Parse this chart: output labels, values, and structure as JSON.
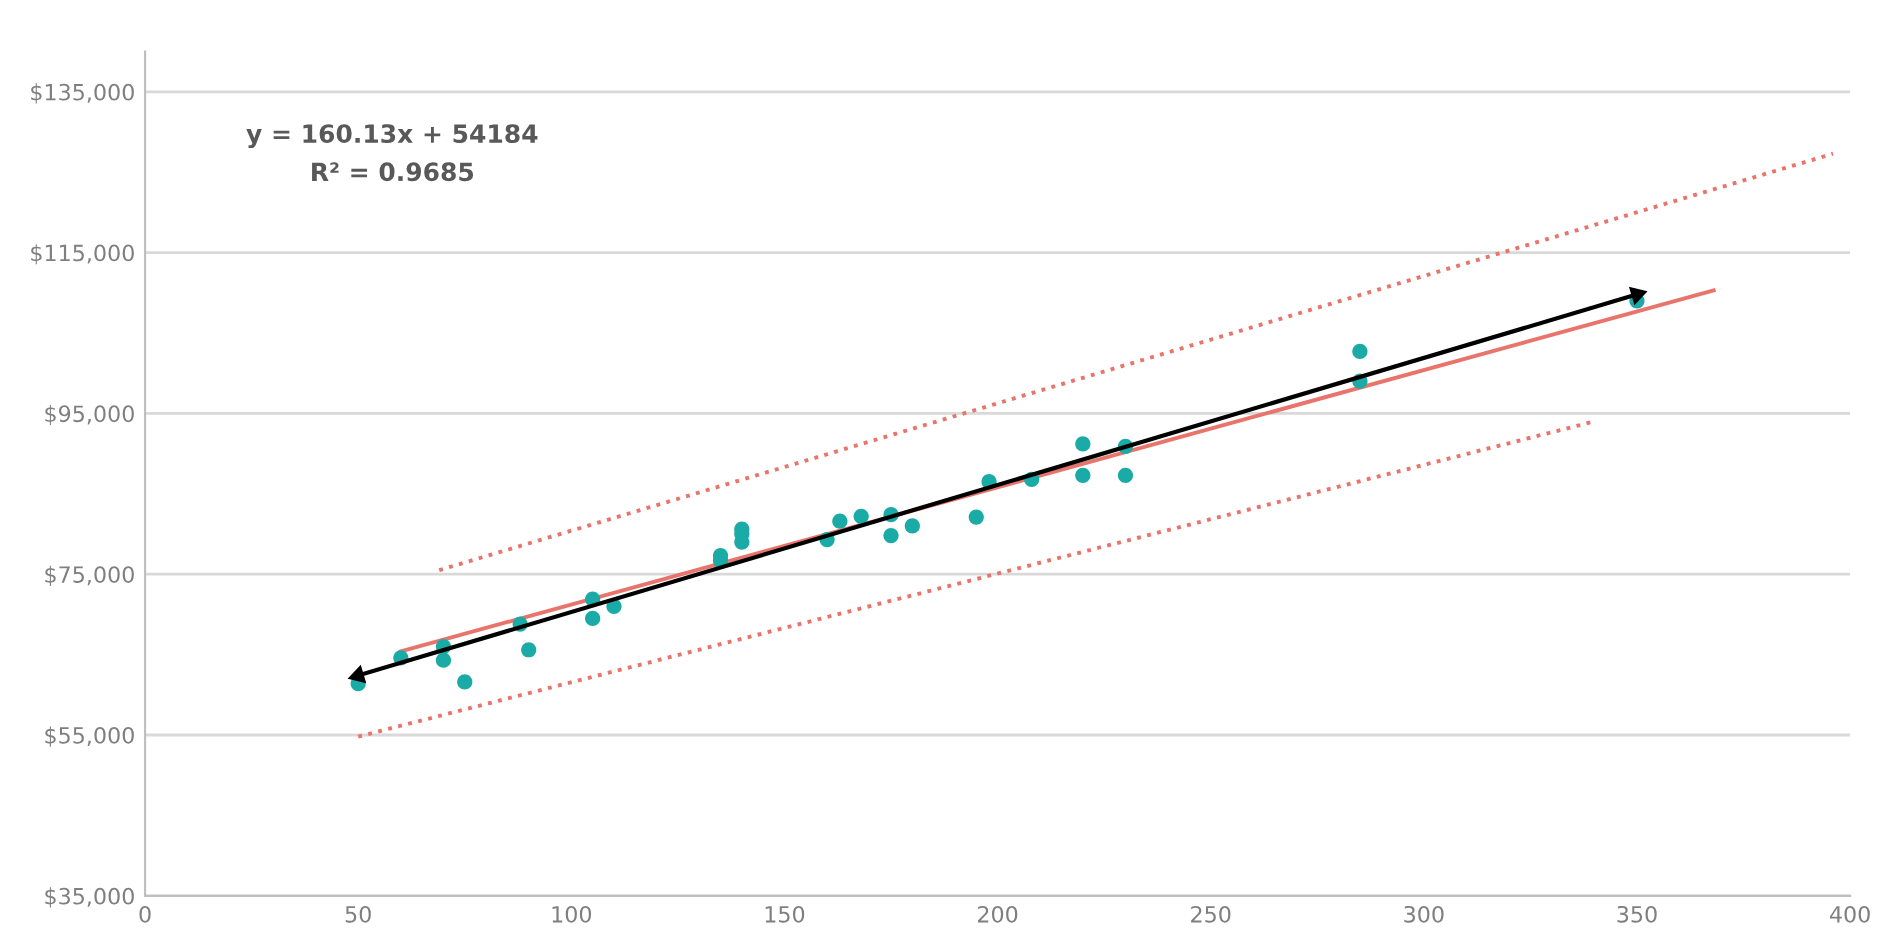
{
  "chart_data": {
    "type": "scatter",
    "xlim": [
      0,
      400
    ],
    "xticks": [
      0,
      50,
      100,
      150,
      200,
      250,
      300,
      350,
      {
        "value": 400,
        "label": "400"
      }
    ],
    "ylim": [
      35000,
      140000
    ],
    "yticks": [
      {
        "value": 35000,
        "label": "$35,000"
      },
      {
        "value": 55000,
        "label": "$55,000"
      },
      {
        "value": 75000,
        "label": "$75,000"
      },
      {
        "value": 95000,
        "label": "$95,000"
      },
      {
        "value": 115000,
        "label": "$115,000"
      },
      {
        "value": 135000,
        "label": "$135,000"
      }
    ],
    "grid": "y",
    "legend": false,
    "annotations": [
      "y = 160.13x + 54184",
      "R² = 0.9685"
    ],
    "series": [
      {
        "marker": "circle",
        "color": "#1aaba6",
        "x": [
          50,
          60,
          70,
          70,
          75,
          88,
          90,
          105,
          105,
          110,
          135,
          135,
          140,
          140,
          140,
          160,
          163,
          168,
          175,
          175,
          180,
          195,
          198,
          208,
          220,
          220,
          230,
          230,
          285,
          285,
          350
        ],
        "values": [
          61400,
          64600,
          66000,
          64300,
          61600,
          68800,
          65600,
          71900,
          69500,
          71000,
          77300,
          76700,
          80600,
          80000,
          79000,
          79300,
          81600,
          82200,
          82400,
          79800,
          81000,
          82100,
          86500,
          86800,
          91200,
          87300,
          90900,
          87300,
          102700,
          99000,
          109000
        ]
      },
      {
        "type": "line",
        "color": "#e8746c",
        "line_style": "solid",
        "marker": "none",
        "x": [
          60,
          368
        ],
        "values": [
          65400,
          110300
        ]
      },
      {
        "type": "line",
        "color": "#e8746c",
        "line_style": "dotted",
        "marker": "none",
        "x": [
          69,
          396
        ],
        "values": [
          75500,
          127300
        ]
      },
      {
        "type": "line",
        "color": "#e8746c",
        "line_style": "dotted",
        "marker": "none",
        "x": [
          50,
          340
        ],
        "values": [
          54800,
          94000
        ]
      },
      {
        "type": "line",
        "color": "#000000",
        "line_style": "solid",
        "marker": "triangle",
        "x": [
          50,
          350
        ],
        "values": [
          62400,
          109800
        ]
      }
    ]
  }
}
